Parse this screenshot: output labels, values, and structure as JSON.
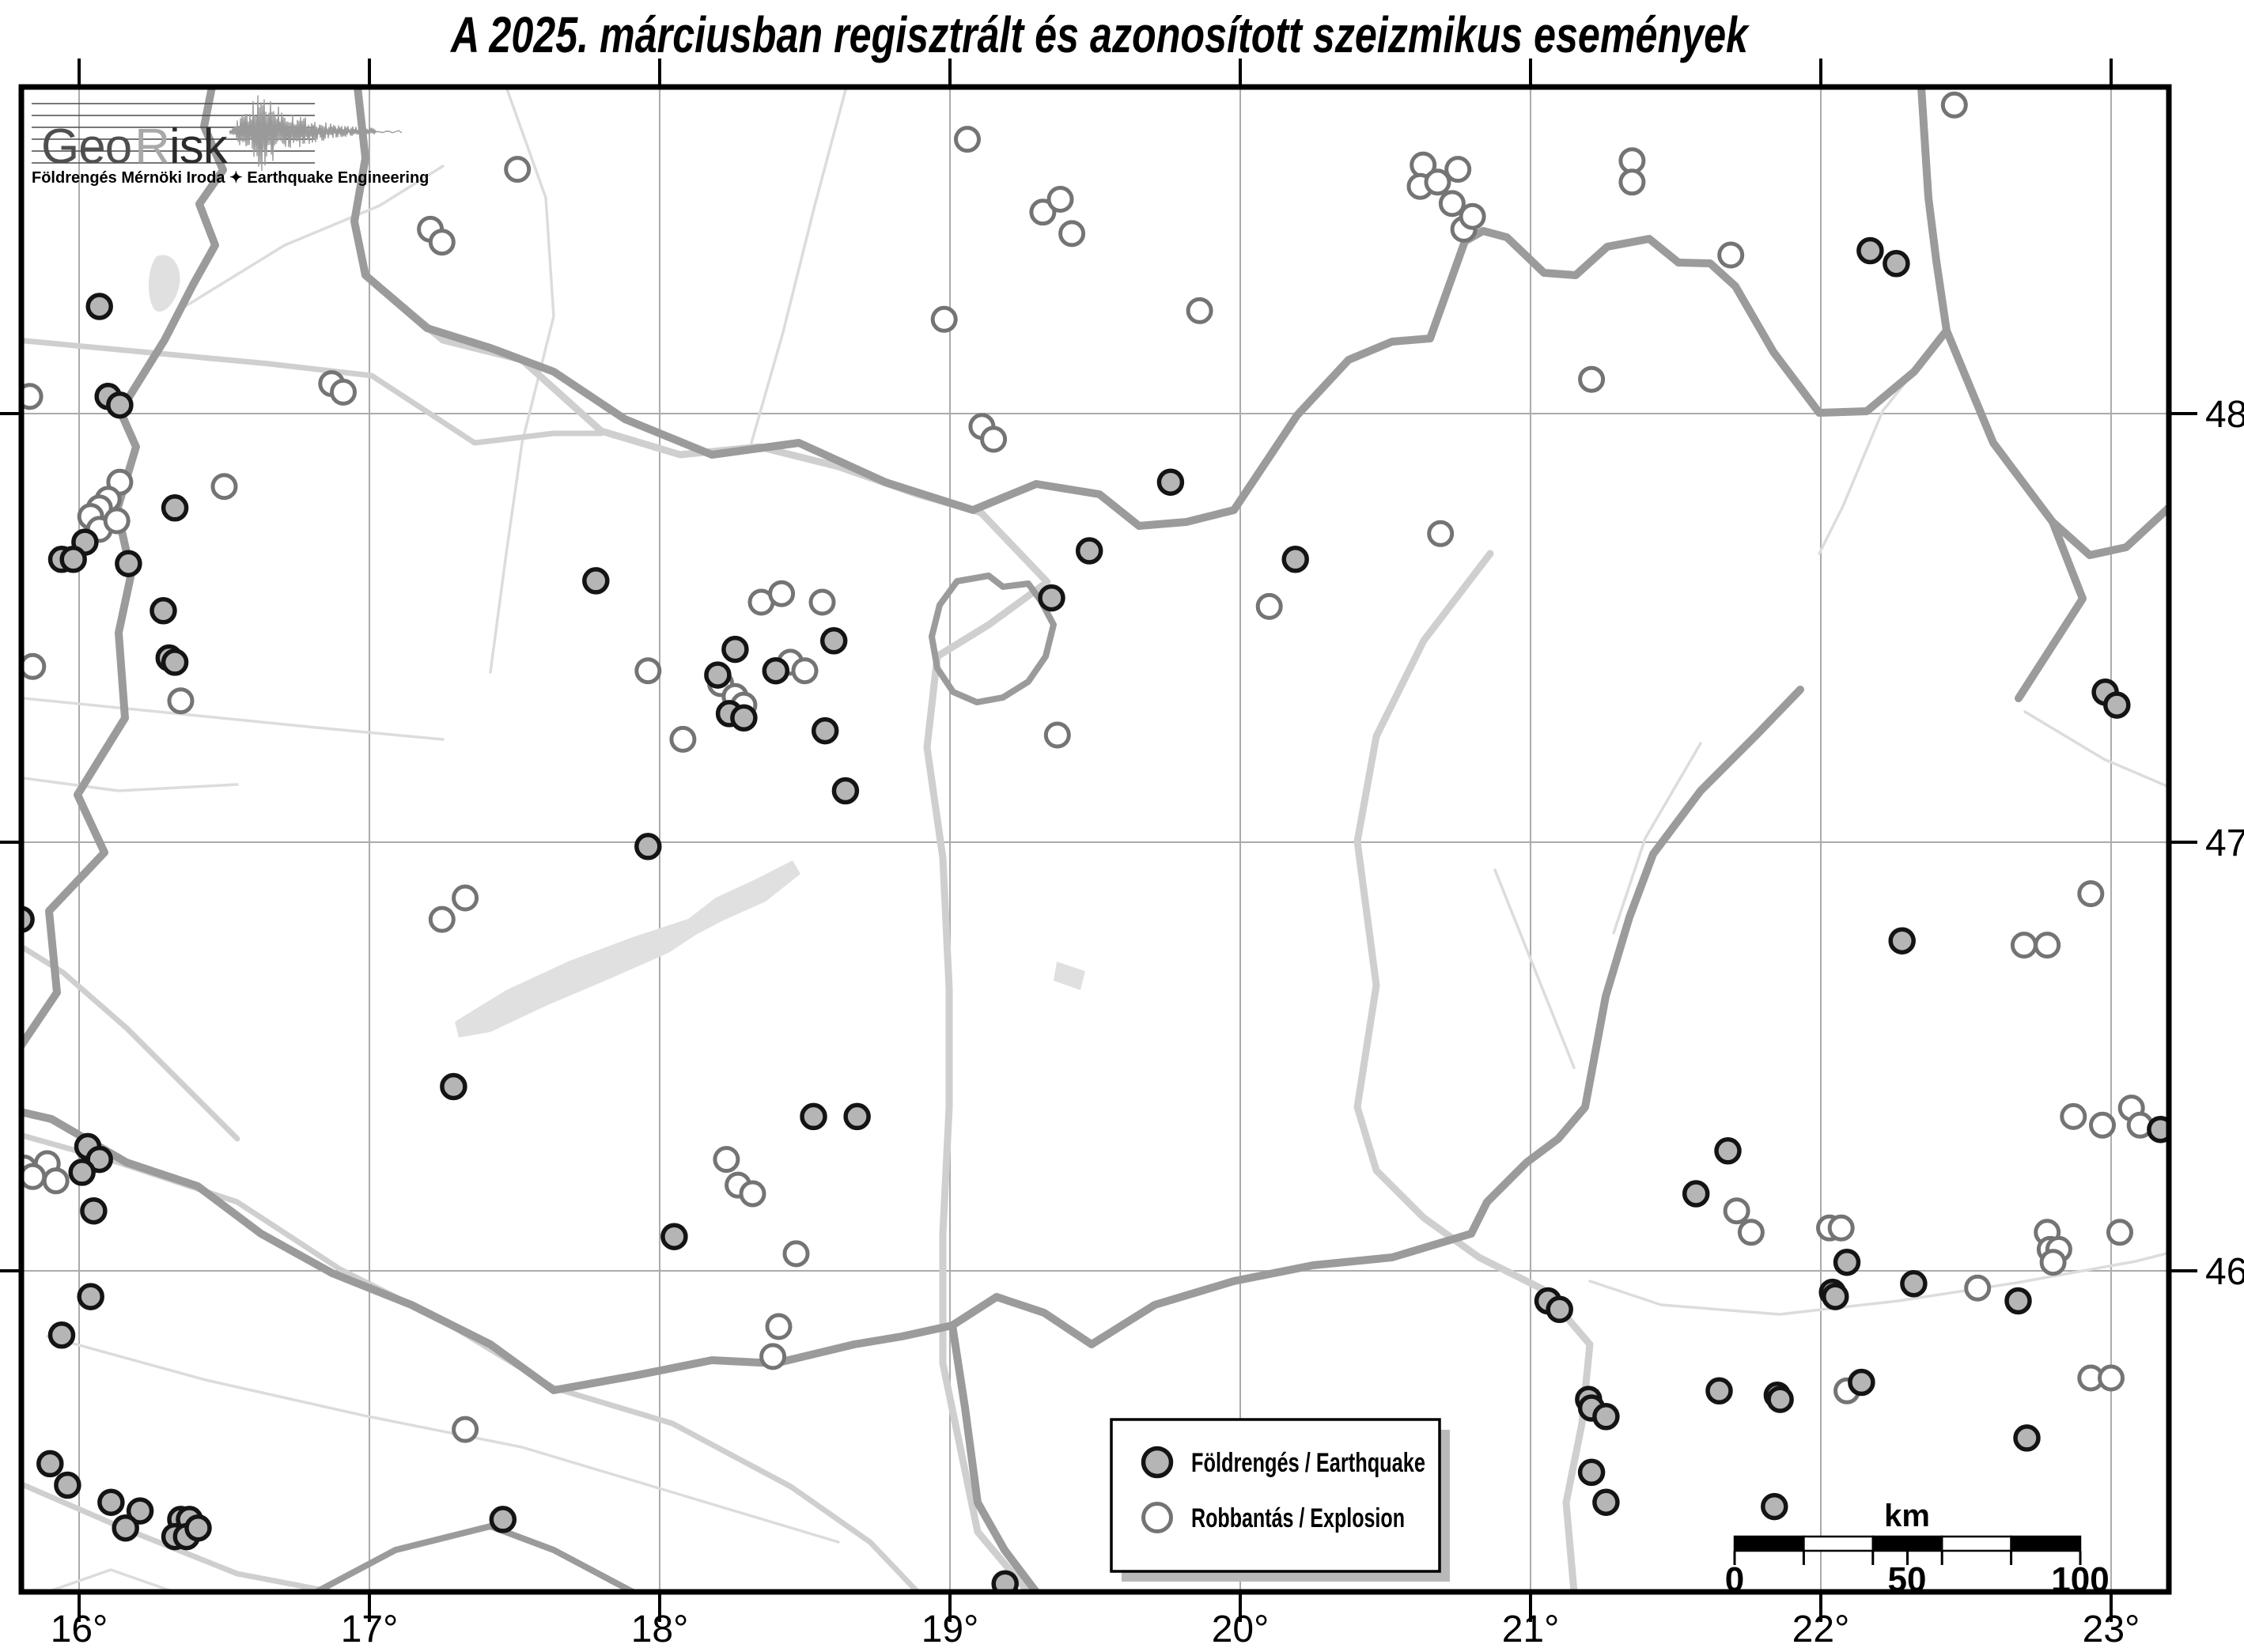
{
  "title": "A 2025. márciusban regisztrált és azonosított szeizmikus események",
  "logo": {
    "geo": "Geo",
    "r": "R",
    "isk": "isk",
    "subtitle": "Földrengés Mérnöki Iroda ✦ Earthquake Engineering"
  },
  "legend": {
    "earthquake_label": "Földrengés / Earthquake",
    "explosion_label": "Robbantás / Explosion"
  },
  "scalebar": {
    "unit": "km",
    "labels": [
      "0",
      "50",
      "100"
    ],
    "tick_km": [
      0,
      20,
      40,
      50,
      60,
      80,
      100
    ],
    "max_km": 100
  },
  "axes": {
    "lon_ticks": [
      16,
      17,
      18,
      19,
      20,
      21,
      22,
      23
    ],
    "lon_labels": [
      "16°",
      "17°",
      "18°",
      "19°",
      "20°",
      "21°",
      "22°",
      "23°"
    ],
    "lat_ticks": [
      48,
      47,
      46
    ],
    "lat_labels": [
      "48°",
      "47°",
      "46°"
    ]
  },
  "colors": {
    "earthquake_fill": "#b5b5b5",
    "earthquake_stroke": "#141414",
    "explosion_fill": "#ffffff",
    "explosion_stroke": "#747474",
    "grid": "#ababab",
    "border_line": "#9b9b9b",
    "river_line": "#cfcfcf",
    "thin_line": "#dcdcdc",
    "lake_fill": "#e0e0e0",
    "frame": "#000000"
  },
  "map_data": {
    "type": "symbol-map",
    "events": [
      [
        "ex",
        15.83,
        48.04
      ],
      [
        "ex",
        16.14,
        47.84
      ],
      [
        "ex",
        16.1,
        47.8
      ],
      [
        "ex",
        16.07,
        47.78
      ],
      [
        "ex",
        16.04,
        47.76
      ],
      [
        "ex",
        16.07,
        47.73
      ],
      [
        "ex",
        16.13,
        47.75
      ],
      [
        "ex",
        16.5,
        47.83
      ],
      [
        "ex",
        16.87,
        48.07
      ],
      [
        "ex",
        16.91,
        48.05
      ],
      [
        "ex",
        17.21,
        48.43
      ],
      [
        "ex",
        17.25,
        48.4
      ],
      [
        "ex",
        17.51,
        48.57
      ],
      [
        "ex",
        15.84,
        47.41
      ],
      [
        "ex",
        16.35,
        47.33
      ],
      [
        "ex",
        17.25,
        46.82
      ],
      [
        "ex",
        17.33,
        46.87
      ],
      [
        "ex",
        15.81,
        46.24
      ],
      [
        "ex",
        15.89,
        46.25
      ],
      [
        "ex",
        15.92,
        46.21
      ],
      [
        "ex",
        15.84,
        46.22
      ],
      [
        "ex",
        17.33,
        45.63
      ],
      [
        "ex",
        18.35,
        47.56
      ],
      [
        "ex",
        18.42,
        47.58
      ],
      [
        "ex",
        18.56,
        47.56
      ],
      [
        "ex",
        17.96,
        47.4
      ],
      [
        "ex",
        18.21,
        47.37
      ],
      [
        "ex",
        18.45,
        47.42
      ],
      [
        "ex",
        18.5,
        47.4
      ],
      [
        "ex",
        18.26,
        47.34
      ],
      [
        "ex",
        18.29,
        47.32
      ],
      [
        "ex",
        18.08,
        47.24
      ],
      [
        "ex",
        19.37,
        47.25
      ],
      [
        "ex",
        18.23,
        46.26
      ],
      [
        "ex",
        18.27,
        46.2
      ],
      [
        "ex",
        18.32,
        46.18
      ],
      [
        "ex",
        18.47,
        46.04
      ],
      [
        "ex",
        18.41,
        45.87
      ],
      [
        "ex",
        18.39,
        45.8
      ],
      [
        "ex",
        19.06,
        48.64
      ],
      [
        "ex",
        19.32,
        48.47
      ],
      [
        "ex",
        19.38,
        48.5
      ],
      [
        "ex",
        19.42,
        48.42
      ],
      [
        "ex",
        18.98,
        48.22
      ],
      [
        "ex",
        19.11,
        47.97
      ],
      [
        "ex",
        19.15,
        47.94
      ],
      [
        "ex",
        20.63,
        48.58
      ],
      [
        "ex",
        20.62,
        48.53
      ],
      [
        "ex",
        20.68,
        48.54
      ],
      [
        "ex",
        20.75,
        48.57
      ],
      [
        "ex",
        20.73,
        48.49
      ],
      [
        "ex",
        20.77,
        48.43
      ],
      [
        "ex",
        20.8,
        48.46
      ],
      [
        "ex",
        21.35,
        48.59
      ],
      [
        "ex",
        21.35,
        48.54
      ],
      [
        "ex",
        21.69,
        48.37
      ],
      [
        "ex",
        21.21,
        48.08
      ],
      [
        "ex",
        19.86,
        48.24
      ],
      [
        "ex",
        20.69,
        47.72
      ],
      [
        "ex",
        20.1,
        47.55
      ],
      [
        "ex",
        21.71,
        46.14
      ],
      [
        "ex",
        21.76,
        46.09
      ],
      [
        "ex",
        22.03,
        46.1
      ],
      [
        "ex",
        22.07,
        46.1
      ],
      [
        "ex",
        22.54,
        45.96
      ],
      [
        "ex",
        22.09,
        45.72
      ],
      [
        "ex",
        22.46,
        48.72
      ],
      [
        "ex",
        22.93,
        46.88
      ],
      [
        "ex",
        22.7,
        46.76
      ],
      [
        "ex",
        22.78,
        46.76
      ],
      [
        "ex",
        22.87,
        46.36
      ],
      [
        "ex",
        22.97,
        46.34
      ],
      [
        "ex",
        23.07,
        46.38
      ],
      [
        "ex",
        23.1,
        46.34
      ],
      [
        "ex",
        22.78,
        46.09
      ],
      [
        "ex",
        22.79,
        46.05
      ],
      [
        "ex",
        22.82,
        46.05
      ],
      [
        "ex",
        22.8,
        46.02
      ],
      [
        "ex",
        23.03,
        46.09
      ],
      [
        "ex",
        22.93,
        45.75
      ],
      [
        "ex",
        23.0,
        45.75
      ],
      [
        "eq",
        16.07,
        48.25
      ],
      [
        "eq",
        16.1,
        48.04
      ],
      [
        "eq",
        16.14,
        48.02
      ],
      [
        "eq",
        16.02,
        47.7
      ],
      [
        "eq",
        16.17,
        47.65
      ],
      [
        "eq",
        16.33,
        47.78
      ],
      [
        "eq",
        15.94,
        47.66
      ],
      [
        "eq",
        15.98,
        47.66
      ],
      [
        "eq",
        16.29,
        47.54
      ],
      [
        "eq",
        16.31,
        47.43
      ],
      [
        "eq",
        16.33,
        47.42
      ],
      [
        "eq",
        15.8,
        46.82
      ],
      [
        "eq",
        17.29,
        46.43
      ],
      [
        "eq",
        16.03,
        46.29
      ],
      [
        "eq",
        16.07,
        46.26
      ],
      [
        "eq",
        16.01,
        46.23
      ],
      [
        "eq",
        16.05,
        46.14
      ],
      [
        "eq",
        16.04,
        45.94
      ],
      [
        "eq",
        15.94,
        45.85
      ],
      [
        "eq",
        15.9,
        45.55
      ],
      [
        "eq",
        15.96,
        45.5
      ],
      [
        "eq",
        16.11,
        45.46
      ],
      [
        "eq",
        16.21,
        45.44
      ],
      [
        "eq",
        16.16,
        45.4
      ],
      [
        "eq",
        16.35,
        45.42
      ],
      [
        "eq",
        16.38,
        45.42
      ],
      [
        "eq",
        16.33,
        45.38
      ],
      [
        "eq",
        16.37,
        45.38
      ],
      [
        "eq",
        16.41,
        45.4
      ],
      [
        "eq",
        17.46,
        45.42
      ],
      [
        "eq",
        17.78,
        47.61
      ],
      [
        "eq",
        18.26,
        47.45
      ],
      [
        "eq",
        18.6,
        47.47
      ],
      [
        "eq",
        18.2,
        47.39
      ],
      [
        "eq",
        18.4,
        47.4
      ],
      [
        "eq",
        18.24,
        47.3
      ],
      [
        "eq",
        18.29,
        47.29
      ],
      [
        "eq",
        18.57,
        47.26
      ],
      [
        "eq",
        18.64,
        47.12
      ],
      [
        "eq",
        17.96,
        46.99
      ],
      [
        "eq",
        18.53,
        46.36
      ],
      [
        "eq",
        18.68,
        46.36
      ],
      [
        "eq",
        18.05,
        46.08
      ],
      [
        "eq",
        19.19,
        45.27
      ],
      [
        "eq",
        19.76,
        47.84
      ],
      [
        "eq",
        19.48,
        47.68
      ],
      [
        "eq",
        19.35,
        47.57
      ],
      [
        "eq",
        20.19,
        47.66
      ],
      [
        "eq",
        21.68,
        46.28
      ],
      [
        "eq",
        21.57,
        46.18
      ],
      [
        "eq",
        22.09,
        46.02
      ],
      [
        "eq",
        22.04,
        45.95
      ],
      [
        "eq",
        22.05,
        45.94
      ],
      [
        "eq",
        22.32,
        45.97
      ],
      [
        "eq",
        22.68,
        45.93
      ],
      [
        "eq",
        21.06,
        45.93
      ],
      [
        "eq",
        21.1,
        45.91
      ],
      [
        "eq",
        21.65,
        45.72
      ],
      [
        "eq",
        21.85,
        45.71
      ],
      [
        "eq",
        21.86,
        45.7
      ],
      [
        "eq",
        22.14,
        45.74
      ],
      [
        "eq",
        21.2,
        45.7
      ],
      [
        "eq",
        21.21,
        45.68
      ],
      [
        "eq",
        21.26,
        45.66
      ],
      [
        "eq",
        21.21,
        45.53
      ],
      [
        "eq",
        21.26,
        45.46
      ],
      [
        "eq",
        21.84,
        45.45
      ],
      [
        "eq",
        22.17,
        48.38
      ],
      [
        "eq",
        22.26,
        48.35
      ],
      [
        "eq",
        22.98,
        47.35
      ],
      [
        "eq",
        23.02,
        47.32
      ],
      [
        "eq",
        22.28,
        46.77
      ],
      [
        "eq",
        23.17,
        46.33
      ],
      [
        "eq",
        22.71,
        45.61
      ]
    ]
  }
}
